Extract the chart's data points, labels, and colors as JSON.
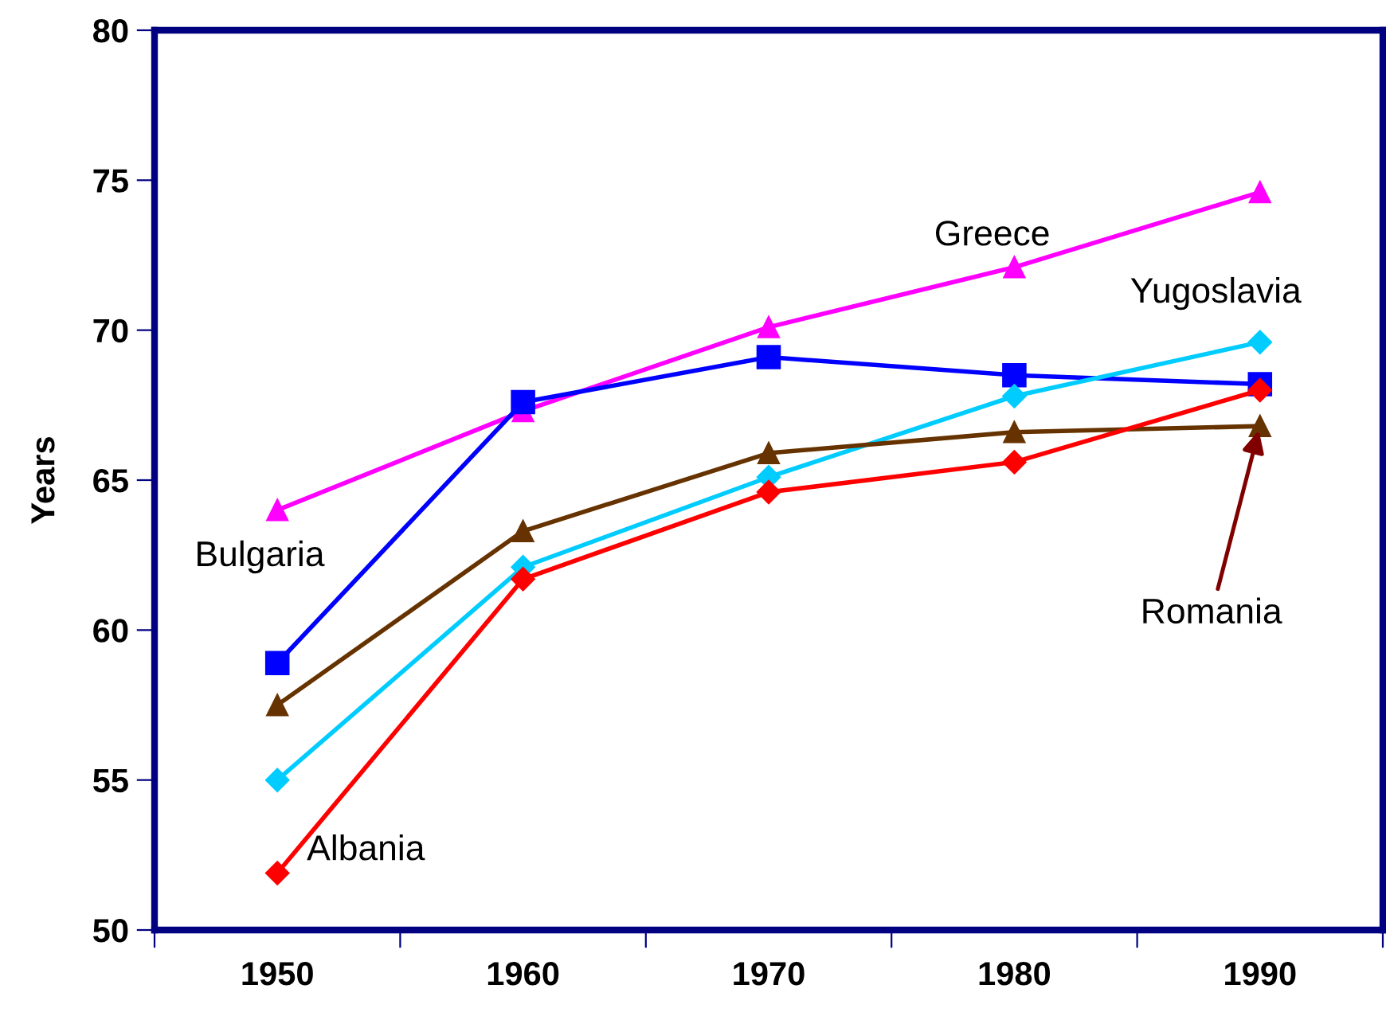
{
  "chart_data": {
    "type": "line",
    "ylabel": "Years",
    "categories": [
      "1950",
      "1960",
      "1970",
      "1980",
      "1990"
    ],
    "ylim": [
      50,
      80
    ],
    "yticks": [
      50,
      55,
      60,
      65,
      70,
      75,
      80
    ],
    "grid": false,
    "legend": false,
    "series": [
      {
        "name": "Greece",
        "color": "#ff00ff",
        "marker": "triangle",
        "values": [
          64.0,
          67.3,
          70.1,
          72.1,
          74.6
        ]
      },
      {
        "name": "Bulgaria",
        "color": "#0000ff",
        "marker": "square",
        "values": [
          58.9,
          67.6,
          69.1,
          68.5,
          68.2
        ]
      },
      {
        "name": "Yugoslavia",
        "color": "#00ccff",
        "marker": "diamond",
        "values": [
          55.0,
          62.1,
          65.1,
          67.8,
          69.6
        ]
      },
      {
        "name": "Romania",
        "color": "#663300",
        "marker": "triangle",
        "values": [
          57.5,
          63.3,
          65.9,
          66.6,
          66.8
        ]
      },
      {
        "name": "Albania",
        "color": "#ff0000",
        "marker": "diamond",
        "values": [
          51.9,
          61.7,
          64.6,
          65.6,
          68.0
        ]
      }
    ]
  }
}
